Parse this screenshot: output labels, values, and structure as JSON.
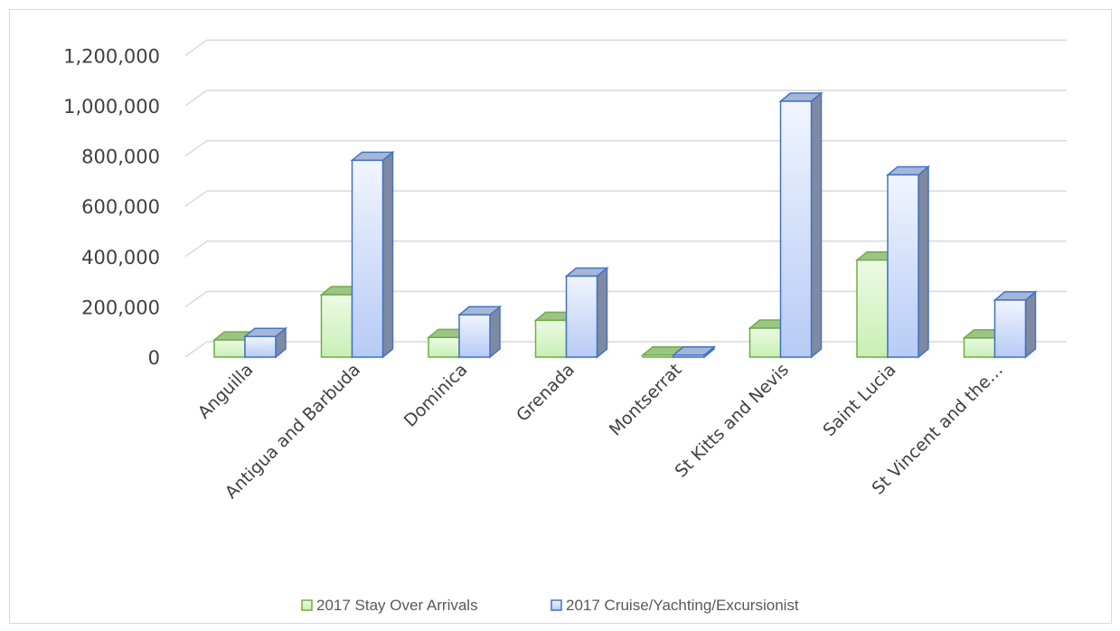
{
  "chart_data": {
    "type": "bar",
    "categories": [
      "Anguilla",
      "Antigua and Barbuda",
      "Dominica",
      "Grenada",
      "Montserrat",
      "St Kitts and Nevis",
      "Saint Lucia",
      "St Vincent and the…"
    ],
    "series": [
      {
        "name": "2017 Stay Over Arrivals",
        "values": [
          68000,
          248000,
          78000,
          146000,
          8000,
          115000,
          386000,
          76000
        ],
        "color": "#d9f5cd",
        "edge": "#70ad47"
      },
      {
        "name": "2017 Cruise/Yachting/Excursionist",
        "values": [
          82000,
          783000,
          168000,
          322000,
          8000,
          1018000,
          725000,
          227000
        ],
        "color": "#cfdcf8",
        "edge": "#4472c4"
      }
    ],
    "yticks": [
      "0",
      "200,000",
      "400,000",
      "600,000",
      "800,000",
      "1,000,000",
      "1,200,000"
    ],
    "ylim": [
      0,
      1200000
    ],
    "grid": true,
    "legend_position": "bottom"
  }
}
